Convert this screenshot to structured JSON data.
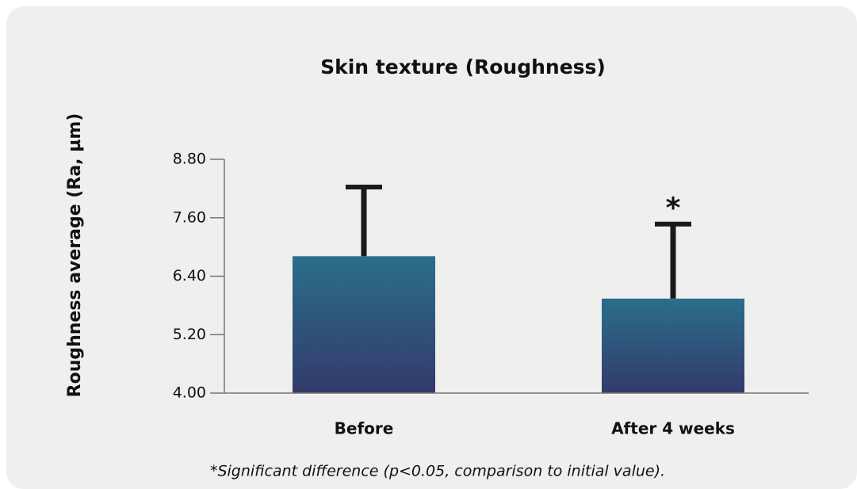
{
  "chart_data": {
    "type": "bar",
    "title": "Skin texture (Roughness)",
    "y_label": "Roughness average (Ra, µm)",
    "categories": [
      "Before",
      "After 4 weeks"
    ],
    "values": [
      6.81,
      5.94
    ],
    "errors": [
      1.42,
      1.53
    ],
    "color": [
      "#2a6e8a",
      "#333a6b"
    ],
    "ylim": [
      4.0,
      8.8
    ],
    "yticks": [
      {
        "value": 4.0,
        "label": "4.00"
      },
      {
        "value": 5.2,
        "label": "5.20"
      },
      {
        "value": 6.4,
        "label": "6.40"
      },
      {
        "value": 7.6,
        "label": "7.60"
      },
      {
        "value": 8.8,
        "label": "8.80"
      }
    ],
    "annotation": "*",
    "footnote": "*Significant difference (p<0.05, comparison to initial value)."
  }
}
